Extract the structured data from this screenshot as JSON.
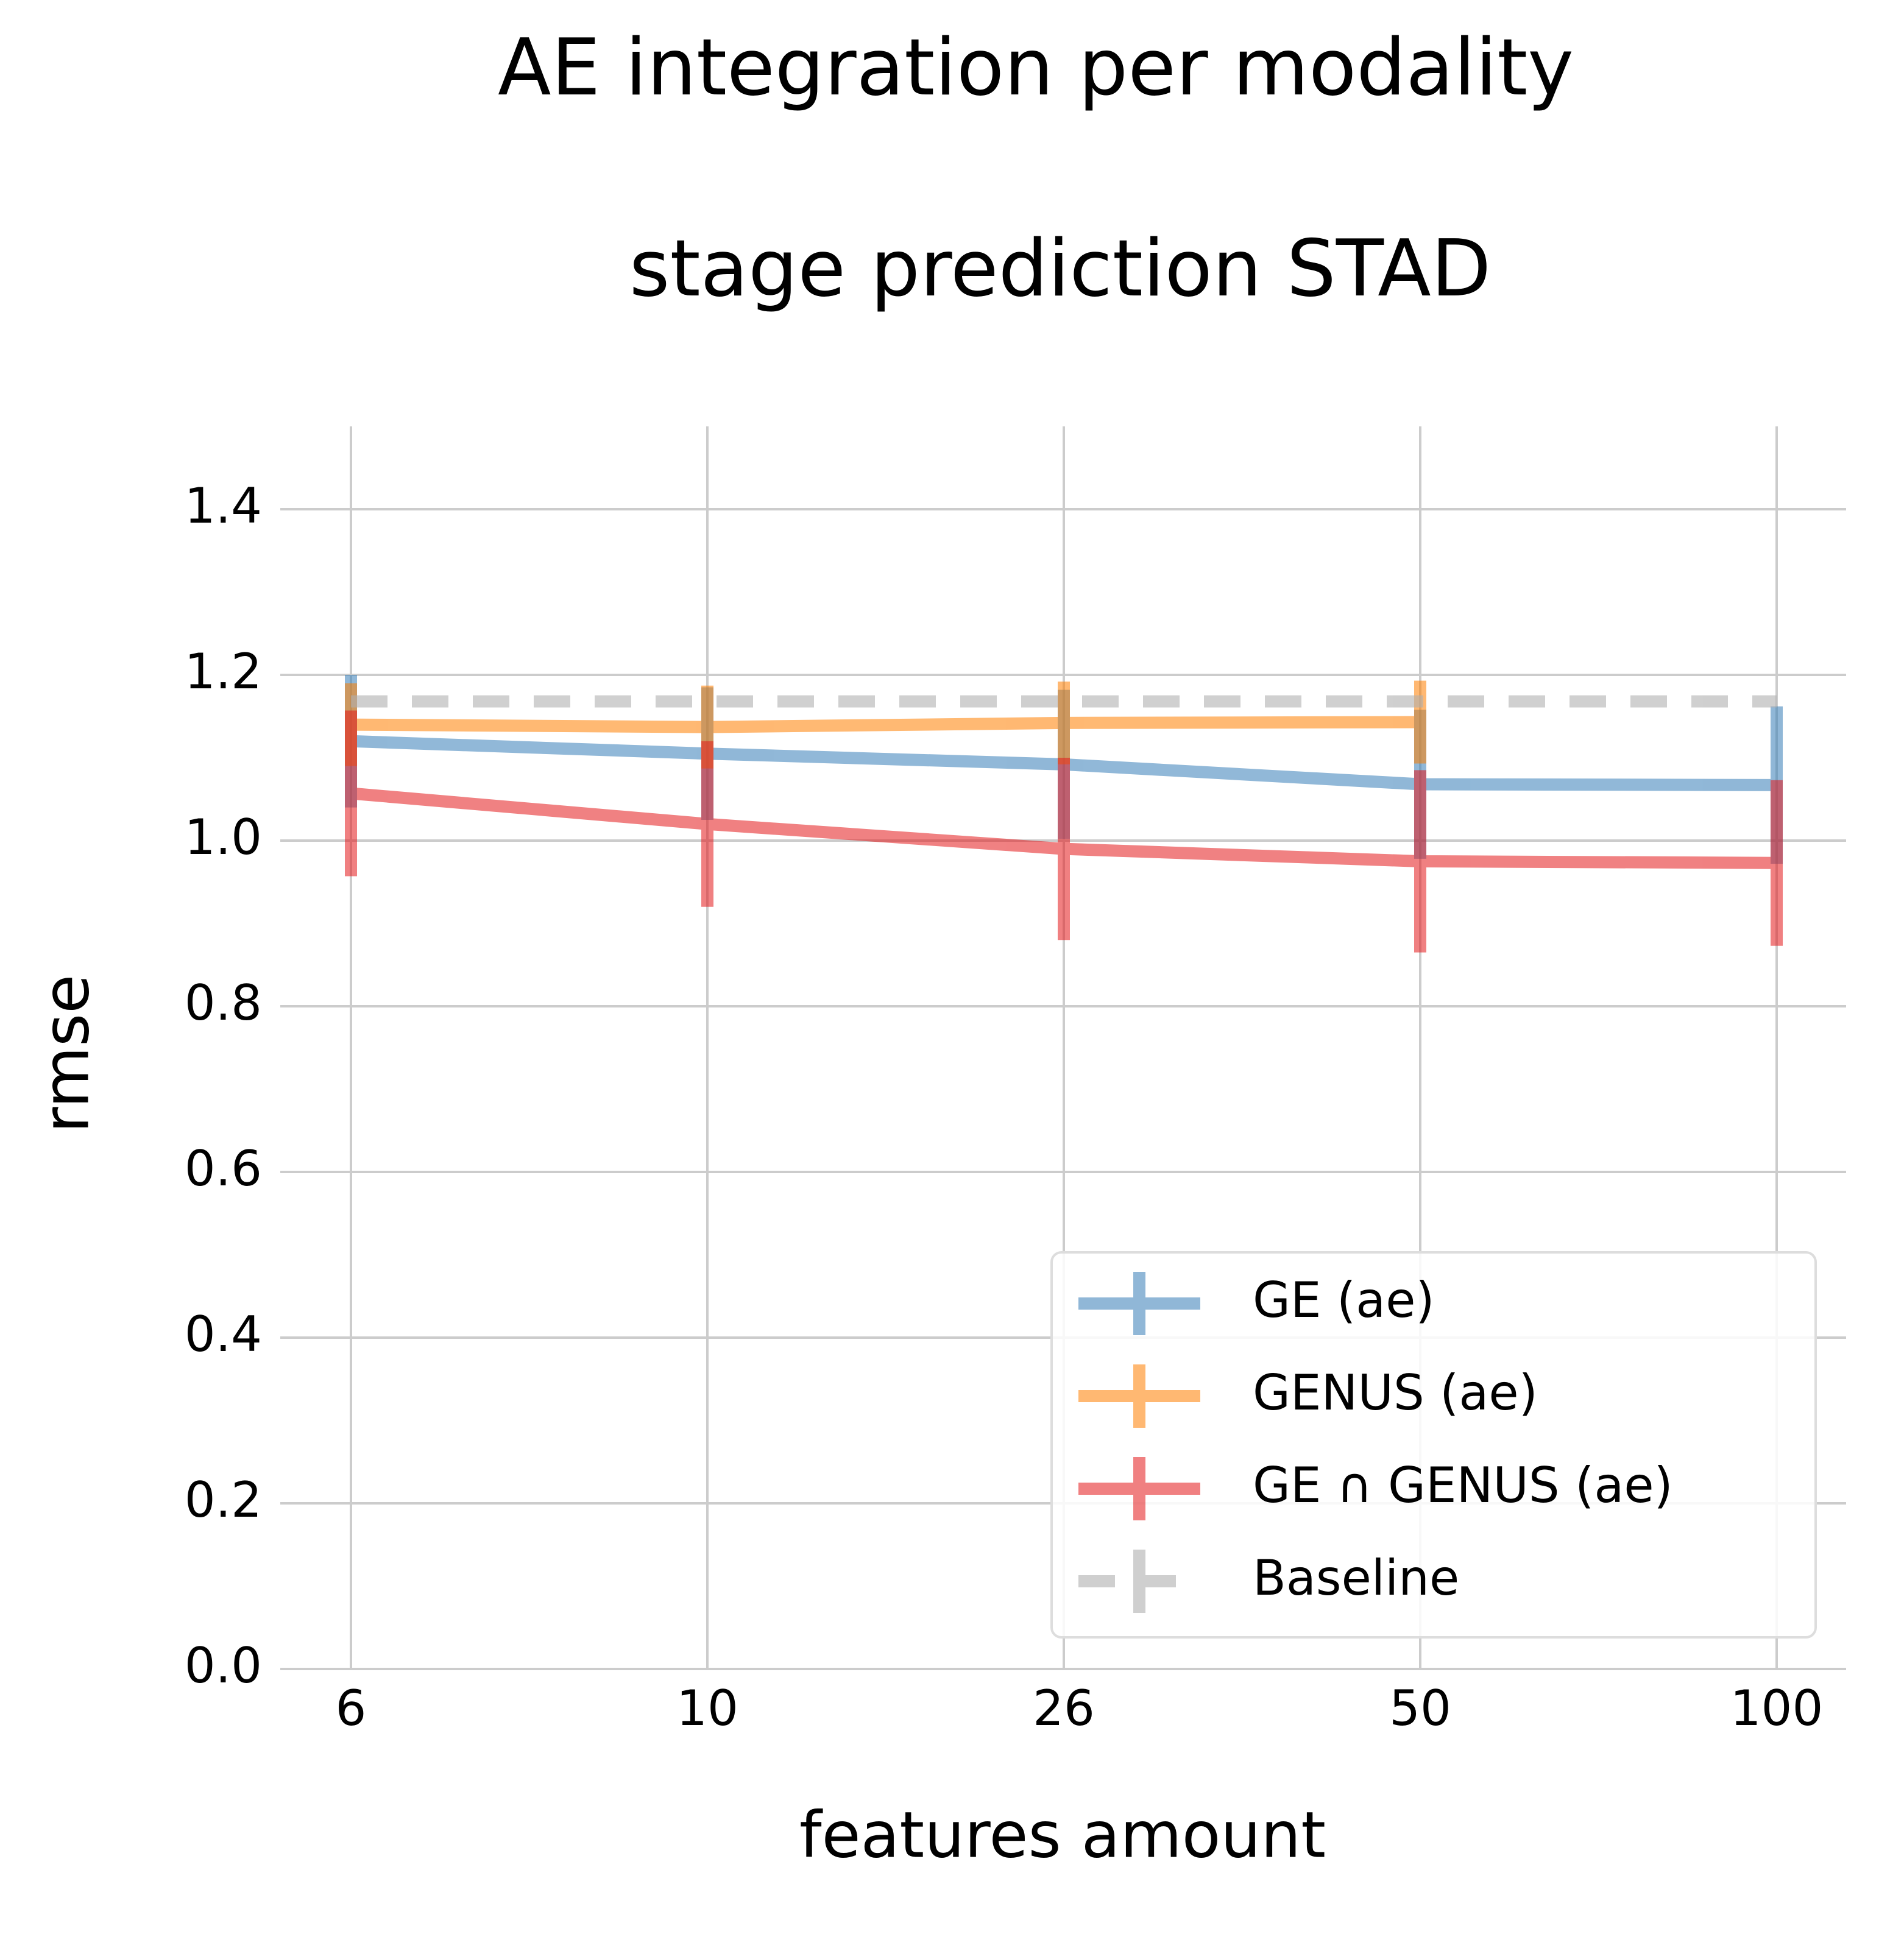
{
  "chart_data": {
    "type": "line",
    "title": [
      "AE integration per modality",
      "stage prediction STAD"
    ],
    "xlabel": "features amount",
    "ylabel": "rmse",
    "categories": [
      "6",
      "10",
      "26",
      "50",
      "100"
    ],
    "ylim": [
      0,
      1.5
    ],
    "yticks": [
      0.0,
      0.2,
      0.4,
      0.6,
      0.8,
      1.0,
      1.2,
      1.4
    ],
    "ytick_labels": [
      "0.0",
      "0.2",
      "0.4",
      "0.6",
      "0.8",
      "1.0",
      "1.2",
      "1.4"
    ],
    "grid": true,
    "legend": "lower right",
    "series": [
      {
        "name": "GE (ae)",
        "color": "#377eb8",
        "values": [
          1.12,
          1.105,
          1.092,
          1.068,
          1.067
        ],
        "errors": [
          0.08,
          0.08,
          0.09,
          0.09,
          0.095
        ]
      },
      {
        "name": "GENUS (ae)",
        "color": "#ff7f00",
        "values": [
          1.14,
          1.137,
          1.142,
          1.143,
          null
        ],
        "errors": [
          0.05,
          0.05,
          0.05,
          0.05,
          null
        ]
      },
      {
        "name": "GE ∩ GENUS (ae)",
        "color": "#e41a1c",
        "values": [
          1.057,
          1.02,
          0.99,
          0.975,
          0.973
        ],
        "errors": [
          0.1,
          0.1,
          0.11,
          0.11,
          0.1
        ]
      },
      {
        "name": "Baseline",
        "color": "#b0b0b0",
        "dashed": true,
        "values": [
          1.168,
          1.168,
          1.168,
          1.168,
          1.168
        ],
        "errors": [
          0,
          0,
          0,
          0,
          0
        ]
      }
    ]
  }
}
